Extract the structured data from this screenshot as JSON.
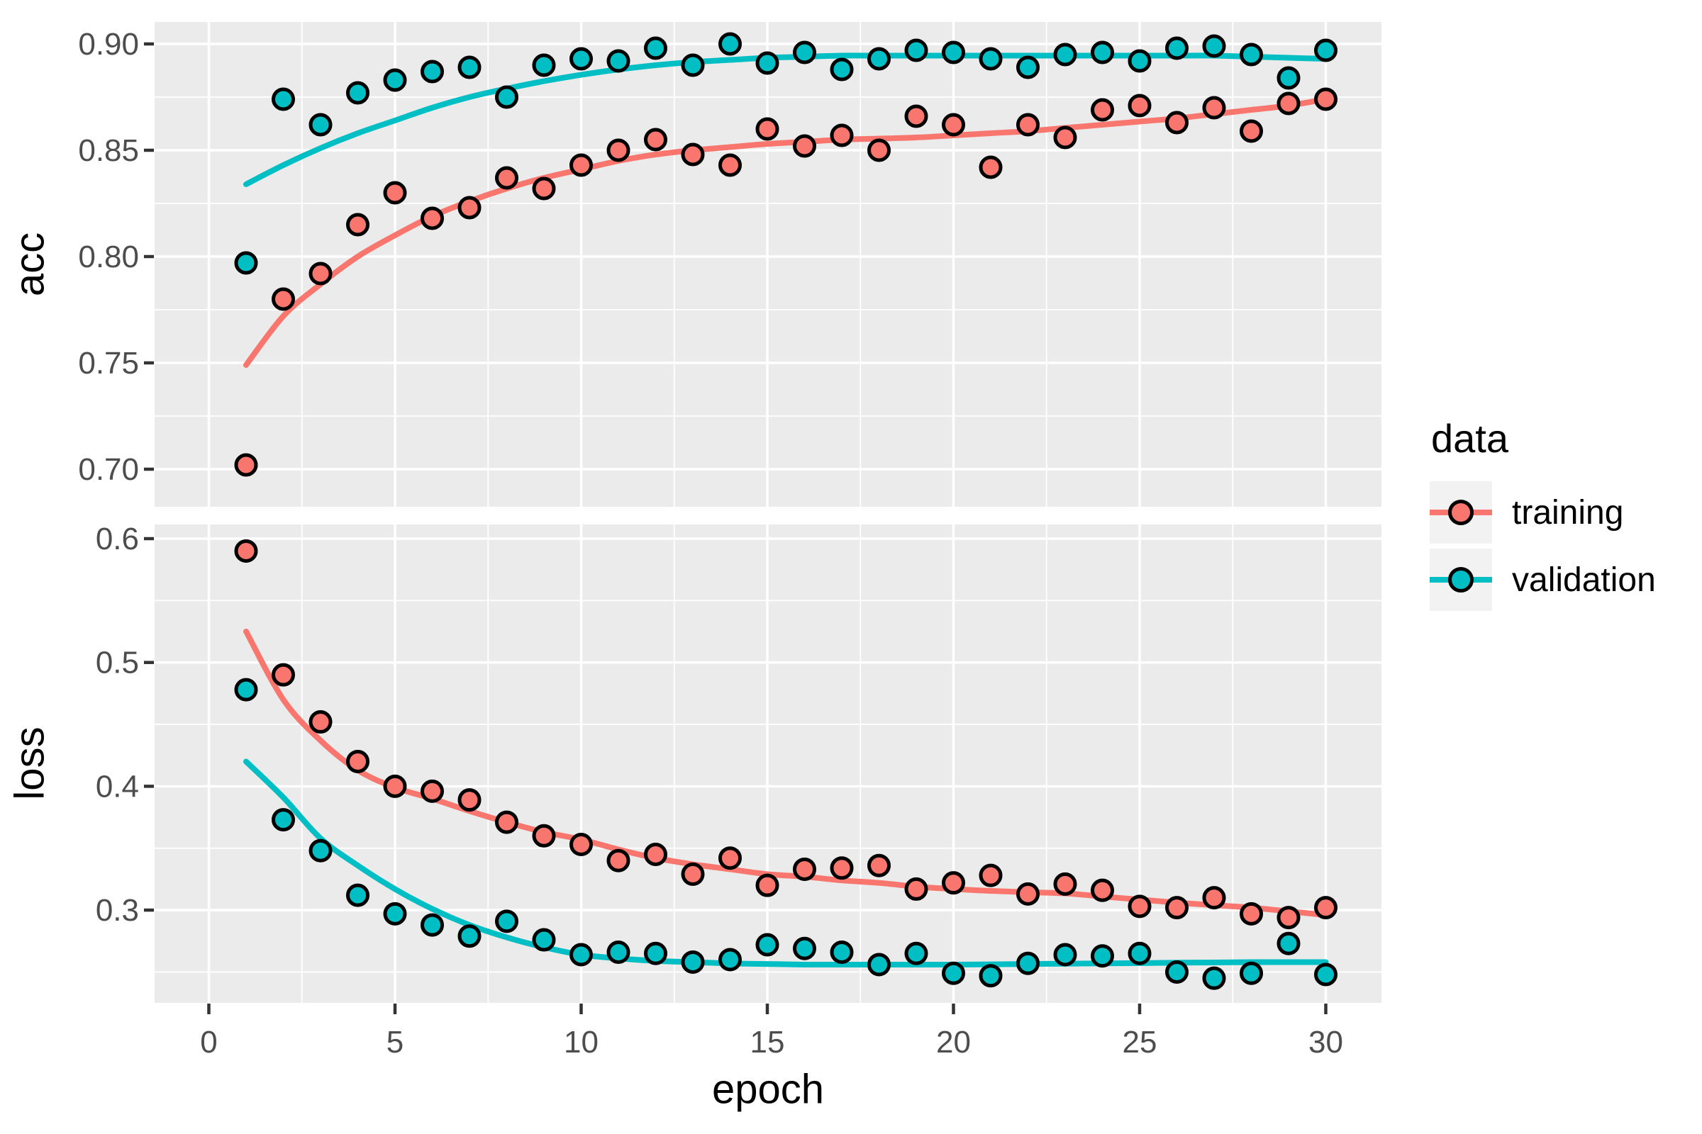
{
  "style": {
    "panel_bg": "#EBEBEB",
    "grid_color": "#FFFFFF",
    "tick_text_color": "#4D4D4D",
    "tick_mark_color": "#333333",
    "point_outline": "#000000",
    "legend_key_bg": "#F2F2F2",
    "training_color": "#F8766D",
    "validation_color": "#00BFC4"
  },
  "chart_data": {
    "type": "scatter",
    "subtype": "points-with-loess-smooth",
    "x_label": "epoch",
    "x": [
      1,
      2,
      3,
      4,
      5,
      6,
      7,
      8,
      9,
      10,
      11,
      12,
      13,
      14,
      15,
      16,
      17,
      18,
      19,
      20,
      21,
      22,
      23,
      24,
      25,
      26,
      27,
      28,
      29,
      30
    ],
    "x_ticks": {
      "labels": [
        "0",
        "5",
        "10",
        "15",
        "20",
        "25",
        "30"
      ],
      "values": [
        0,
        5,
        10,
        15,
        20,
        25,
        30
      ],
      "minor": [
        2.5,
        7.5,
        12.5,
        17.5,
        22.5,
        27.5
      ]
    },
    "xlim": [
      -1.45,
      31.45
    ],
    "legend": {
      "title": "data",
      "position": "right"
    },
    "grid": true,
    "panels": [
      {
        "name": "acc",
        "y_label": "acc",
        "ylim": [
          0.682,
          0.91
        ],
        "y_ticks": {
          "labels": [
            "0.90",
            "0.85",
            "0.80",
            "0.75",
            "0.70"
          ],
          "values": [
            0.9,
            0.85,
            0.8,
            0.75,
            0.7
          ],
          "minor": [
            0.875,
            0.825,
            0.775,
            0.725
          ]
        },
        "series": [
          {
            "name": "training",
            "color": "#F8766D",
            "points": [
              0.702,
              0.78,
              0.792,
              0.815,
              0.83,
              0.818,
              0.823,
              0.837,
              0.832,
              0.843,
              0.85,
              0.855,
              0.848,
              0.843,
              0.86,
              0.852,
              0.857,
              0.85,
              0.866,
              0.862,
              0.842,
              0.862,
              0.856,
              0.869,
              0.871,
              0.863,
              0.87,
              0.859,
              0.872,
              0.874
            ],
            "smooth": [
              0.749,
              0.772,
              0.787,
              0.8,
              0.81,
              0.819,
              0.826,
              0.832,
              0.837,
              0.841,
              0.845,
              0.848,
              0.85,
              0.8515,
              0.853,
              0.854,
              0.855,
              0.8555,
              0.856,
              0.857,
              0.858,
              0.859,
              0.8605,
              0.862,
              0.8635,
              0.865,
              0.867,
              0.869,
              0.871,
              0.874
            ]
          },
          {
            "name": "validation",
            "color": "#00BFC4",
            "points": [
              0.797,
              0.874,
              0.862,
              0.877,
              0.883,
              0.887,
              0.889,
              0.875,
              0.89,
              0.893,
              0.892,
              0.898,
              0.89,
              0.9,
              0.891,
              0.896,
              0.888,
              0.893,
              0.897,
              0.896,
              0.893,
              0.889,
              0.895,
              0.896,
              0.892,
              0.898,
              0.899,
              0.895,
              0.884,
              0.897
            ],
            "smooth": [
              0.834,
              0.843,
              0.851,
              0.858,
              0.864,
              0.87,
              0.875,
              0.879,
              0.8825,
              0.8855,
              0.888,
              0.89,
              0.8915,
              0.8925,
              0.8935,
              0.894,
              0.8945,
              0.8945,
              0.8945,
              0.8945,
              0.8945,
              0.8945,
              0.8945,
              0.8945,
              0.8945,
              0.8945,
              0.8945,
              0.894,
              0.8935,
              0.893
            ]
          }
        ]
      },
      {
        "name": "loss",
        "y_label": "loss",
        "ylim": [
          0.225,
          0.611
        ],
        "y_ticks": {
          "labels": [
            "0.6",
            "0.5",
            "0.4",
            "0.3"
          ],
          "values": [
            0.6,
            0.5,
            0.4,
            0.3
          ],
          "minor": [
            0.55,
            0.45,
            0.35,
            0.25
          ]
        },
        "series": [
          {
            "name": "training",
            "color": "#F8766D",
            "points": [
              0.59,
              0.49,
              0.452,
              0.42,
              0.4,
              0.396,
              0.389,
              0.371,
              0.36,
              0.353,
              0.34,
              0.345,
              0.329,
              0.342,
              0.32,
              0.333,
              0.334,
              0.336,
              0.317,
              0.322,
              0.328,
              0.313,
              0.321,
              0.316,
              0.303,
              0.302,
              0.31,
              0.297,
              0.294,
              0.302
            ],
            "smooth": [
              0.525,
              0.47,
              0.437,
              0.413,
              0.399,
              0.39,
              0.38,
              0.371,
              0.363,
              0.357,
              0.349,
              0.342,
              0.337,
              0.333,
              0.329,
              0.327,
              0.324,
              0.322,
              0.319,
              0.317,
              0.3155,
              0.3145,
              0.3135,
              0.311,
              0.3085,
              0.306,
              0.304,
              0.302,
              0.299,
              0.296
            ]
          },
          {
            "name": "validation",
            "color": "#00BFC4",
            "points": [
              0.478,
              0.373,
              0.348,
              0.312,
              0.297,
              0.288,
              0.279,
              0.291,
              0.276,
              0.264,
              0.266,
              0.265,
              0.258,
              0.26,
              0.272,
              0.269,
              0.266,
              0.256,
              0.265,
              0.249,
              0.247,
              0.257,
              0.264,
              0.263,
              0.265,
              0.25,
              0.245,
              0.249,
              0.273,
              0.248
            ],
            "smooth": [
              0.42,
              0.391,
              0.358,
              0.336,
              0.317,
              0.301,
              0.288,
              0.278,
              0.27,
              0.264,
              0.261,
              0.259,
              0.258,
              0.257,
              0.2565,
              0.256,
              0.256,
              0.256,
              0.256,
              0.256,
              0.2562,
              0.2565,
              0.2567,
              0.257,
              0.2572,
              0.2575,
              0.2577,
              0.258,
              0.258,
              0.258
            ]
          }
        ]
      }
    ]
  }
}
